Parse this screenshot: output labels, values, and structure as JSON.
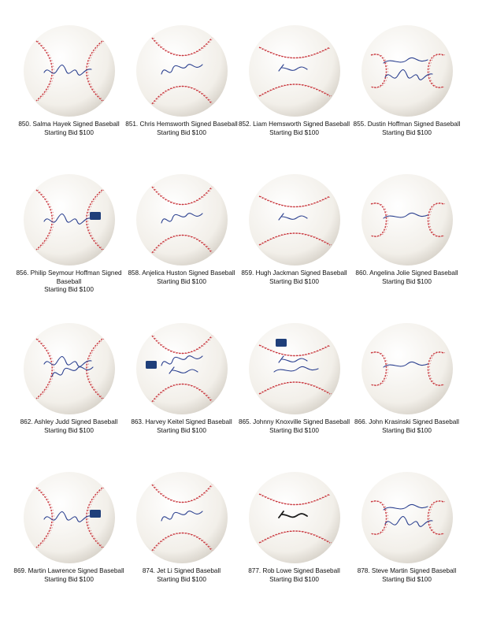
{
  "lots": [
    {
      "title": "850. Salma Hayek Signed Baseball",
      "bid": "Starting Bid $100",
      "logo": false,
      "sig_lines": 1,
      "seam": "default"
    },
    {
      "title": "851. Chris Hemsworth Signed Baseball",
      "bid": "Starting Bid $100",
      "logo": false,
      "sig_lines": 1,
      "seam": "default"
    },
    {
      "title": "852. Liam Hemsworth Signed Baseball",
      "bid": "Starting Bid $100",
      "logo": false,
      "sig_lines": 1,
      "seam": "default"
    },
    {
      "title": "855. Dustin Hoffman Signed Baseball",
      "bid": "Starting Bid $100",
      "logo": false,
      "sig_lines": 2,
      "seam": "default"
    },
    {
      "title": "856. Philip Seymour Hoffman Signed Baseball",
      "bid": "Starting Bid $100",
      "logo": true,
      "sig_lines": 1,
      "seam": "default"
    },
    {
      "title": "858. Anjelica Huston Signed Baseball",
      "bid": "Starting Bid $100",
      "logo": false,
      "sig_lines": 1,
      "seam": "default"
    },
    {
      "title": "859. Hugh Jackman Signed Baseball",
      "bid": "Starting Bid $100",
      "logo": false,
      "sig_lines": 1,
      "seam": "default"
    },
    {
      "title": "860. Angelina Jolie Signed Baseball",
      "bid": "Starting Bid $100",
      "logo": false,
      "sig_lines": 1,
      "seam": "default"
    },
    {
      "title": "862. Ashley Judd Signed Baseball",
      "bid": "Starting Bid $100",
      "logo": false,
      "sig_lines": 2,
      "seam": "default"
    },
    {
      "title": "863. Harvey Keitel Signed Baseball",
      "bid": "Starting Bid $100",
      "logo": true,
      "sig_lines": 2,
      "seam": "default"
    },
    {
      "title": "865. Johnny Knoxville Signed Baseball",
      "bid": "Starting Bid $100",
      "logo": true,
      "sig_lines": 2,
      "seam": "default"
    },
    {
      "title": "866. John Krasinski Signed Baseball",
      "bid": "Starting Bid $100",
      "logo": false,
      "sig_lines": 1,
      "seam": "default"
    },
    {
      "title": "869. Martin Lawrence Signed Baseball",
      "bid": "Starting Bid $100",
      "logo": true,
      "sig_lines": 1,
      "seam": "default"
    },
    {
      "title": "874. Jet Li Signed Baseball",
      "bid": "Starting Bid $100",
      "logo": false,
      "sig_lines": 1,
      "seam": "default"
    },
    {
      "title": "877. Rob Lowe Signed Baseball",
      "bid": "Starting Bid $100",
      "logo": false,
      "sig_lines": 1,
      "seam": "default"
    },
    {
      "title": "878. Steve Martin Signed Baseball",
      "bid": "Starting Bid $100",
      "logo": false,
      "sig_lines": 2,
      "seam": "default"
    }
  ],
  "colors": {
    "ink_blue": "#2a3f8f",
    "ink_black": "#1a1a1a",
    "stitch_red": "#c8333a",
    "ball_leather": "#f2efe9",
    "logo_blue": "#1f3f7a"
  }
}
